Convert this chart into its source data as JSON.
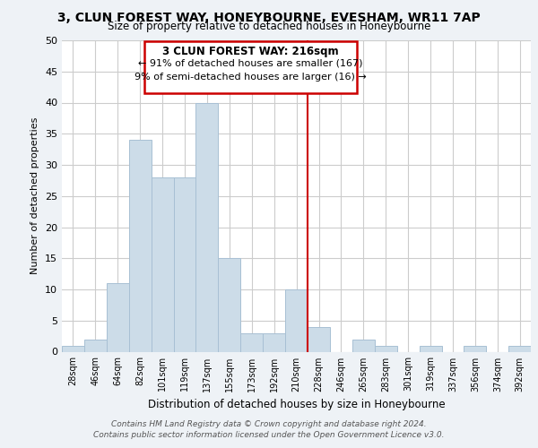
{
  "title": "3, CLUN FOREST WAY, HONEYBOURNE, EVESHAM, WR11 7AP",
  "subtitle": "Size of property relative to detached houses in Honeybourne",
  "xlabel": "Distribution of detached houses by size in Honeybourne",
  "ylabel": "Number of detached properties",
  "bin_labels": [
    "28sqm",
    "46sqm",
    "64sqm",
    "82sqm",
    "101sqm",
    "119sqm",
    "137sqm",
    "155sqm",
    "173sqm",
    "192sqm",
    "210sqm",
    "228sqm",
    "246sqm",
    "265sqm",
    "283sqm",
    "301sqm",
    "319sqm",
    "337sqm",
    "356sqm",
    "374sqm",
    "392sqm"
  ],
  "bar_heights": [
    1,
    2,
    11,
    34,
    28,
    28,
    40,
    15,
    3,
    3,
    10,
    4,
    0,
    2,
    1,
    0,
    1,
    0,
    1,
    0,
    1
  ],
  "bar_color": "#ccdce8",
  "bar_edge_color": "#a8c0d4",
  "reference_line_color": "#cc0000",
  "annotation_title": "3 CLUN FOREST WAY: 216sqm",
  "annotation_line1": "← 91% of detached houses are smaller (167)",
  "annotation_line2": "9% of semi-detached houses are larger (16) →",
  "annotation_box_color": "#ffffff",
  "annotation_box_edge_color": "#cc0000",
  "ylim": [
    0,
    50
  ],
  "yticks": [
    0,
    5,
    10,
    15,
    20,
    25,
    30,
    35,
    40,
    45,
    50
  ],
  "footer_line1": "Contains HM Land Registry data © Crown copyright and database right 2024.",
  "footer_line2": "Contains public sector information licensed under the Open Government Licence v3.0.",
  "bg_color": "#eef2f6",
  "plot_bg_color": "#ffffff",
  "grid_color": "#cccccc"
}
